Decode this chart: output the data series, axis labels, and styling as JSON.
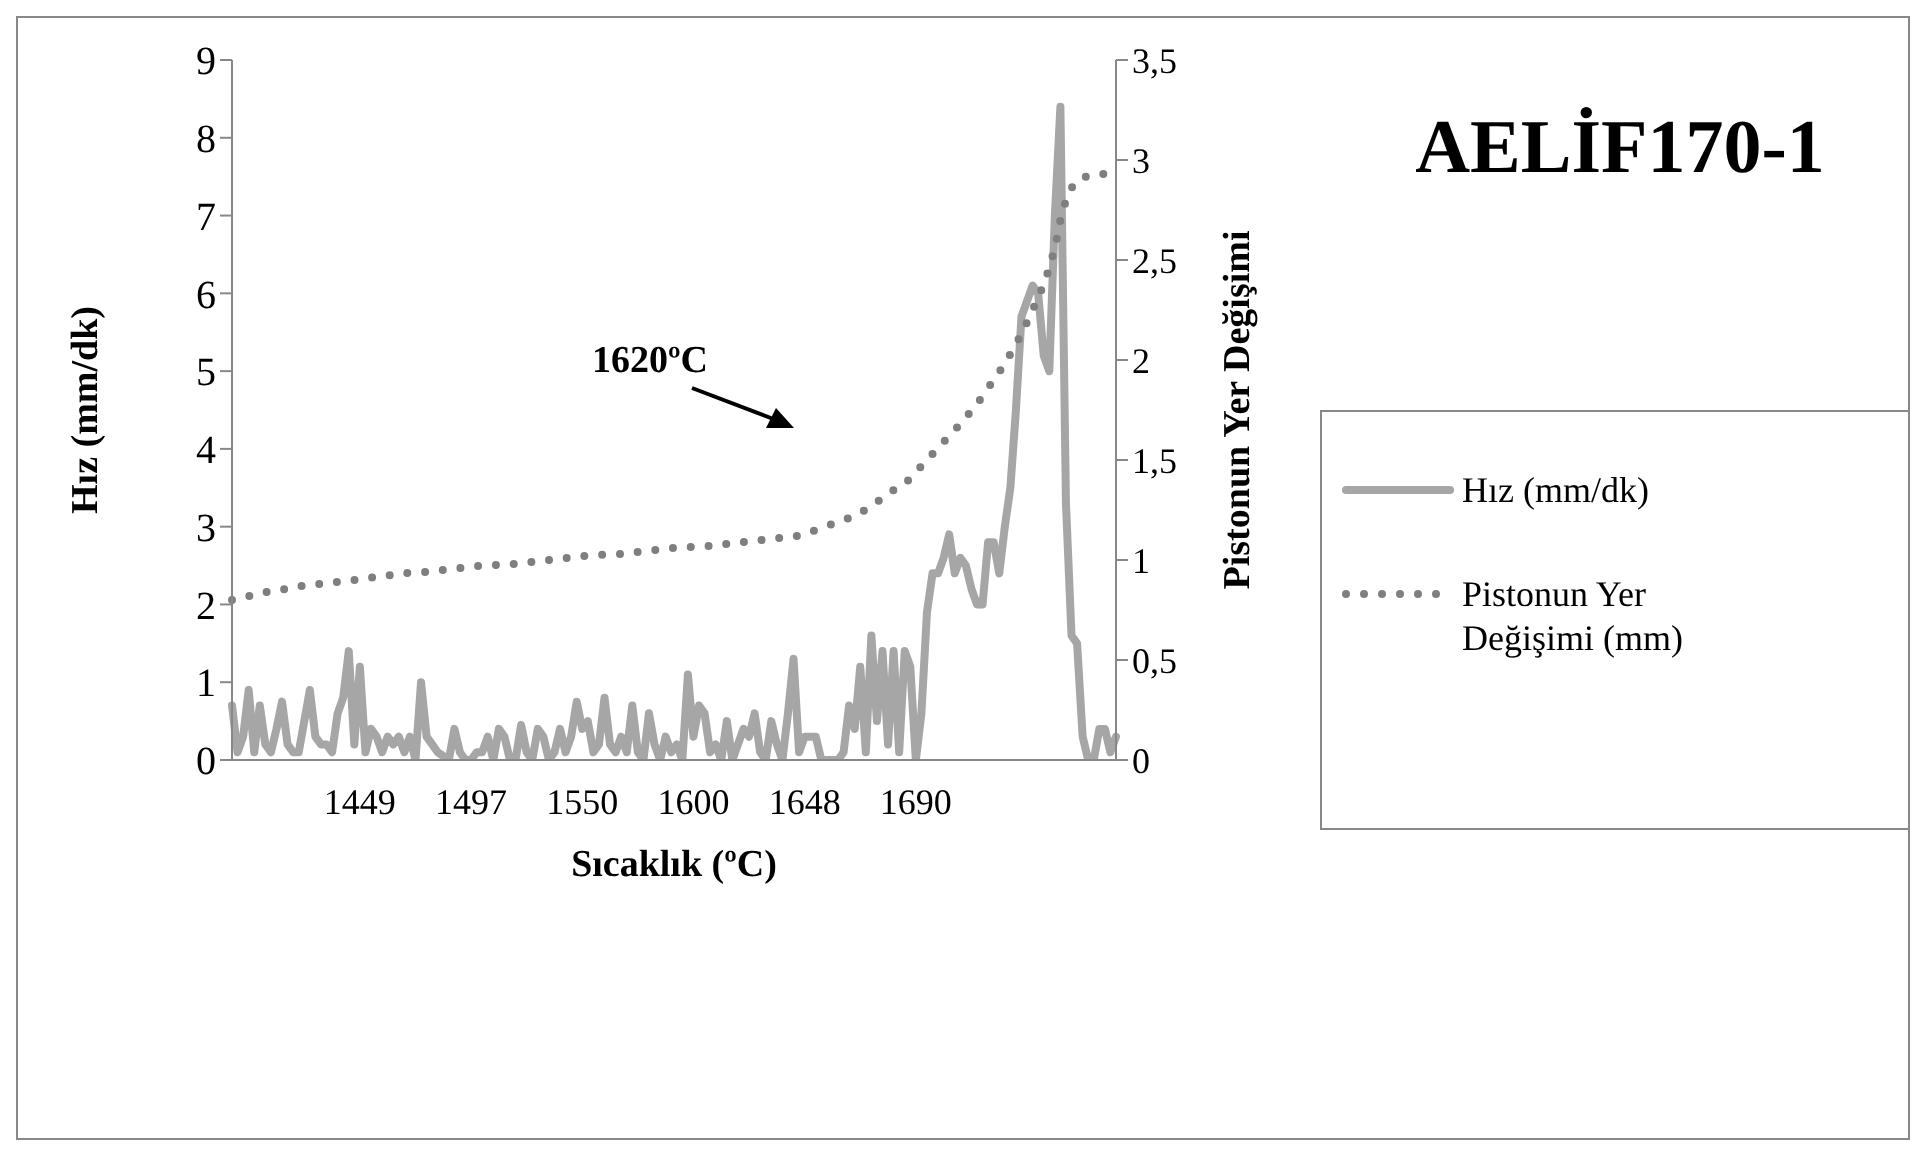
{
  "chart_data": {
    "type": "line",
    "title": "AELİF170-1",
    "xlabel": "Sıcaklık (ºC)",
    "ylabel": "Hız (mm/dk)",
    "y2label": "Pistonun Yer Değişimi",
    "categories": [
      null,
      null,
      null,
      null,
      null,
      null,
      null,
      null,
      null,
      null,
      null,
      null,
      null,
      null,
      null,
      null,
      null,
      null,
      null,
      null,
      null,
      null,
      null,
      "1449",
      null,
      null,
      null,
      null,
      null,
      null,
      null,
      null,
      null,
      null,
      null,
      null,
      null,
      null,
      null,
      null,
      null,
      null,
      null,
      "1497",
      null,
      null,
      null,
      null,
      null,
      null,
      null,
      null,
      null,
      null,
      null,
      null,
      null,
      null,
      null,
      null,
      null,
      null,
      null,
      "1550",
      null,
      null,
      null,
      null,
      null,
      null,
      null,
      null,
      null,
      null,
      null,
      null,
      null,
      null,
      null,
      null,
      null,
      null,
      null,
      "1600",
      null,
      null,
      null,
      null,
      null,
      null,
      null,
      null,
      null,
      null,
      null,
      null,
      null,
      null,
      null,
      null,
      null,
      null,
      null,
      "1648",
      null,
      null,
      null,
      null,
      null,
      null,
      null,
      null,
      null,
      null,
      null,
      null,
      null,
      null,
      null,
      null,
      null,
      null,
      null,
      "1690",
      null,
      null,
      null,
      null,
      null,
      null,
      null,
      null,
      null,
      null,
      null,
      null,
      null,
      null,
      null,
      null,
      null,
      null,
      null,
      null,
      null,
      null,
      null,
      null,
      null,
      null,
      null,
      null,
      null,
      null,
      null,
      null,
      null,
      null,
      null,
      null
    ],
    "series": [
      {
        "name": "Hız (mm/dk)",
        "color": "#a6a6a6",
        "line_style": "solid",
        "values": [
          0.7,
          0.1,
          0.3,
          0.9,
          0.1,
          0.7,
          0.2,
          0.1,
          0.4,
          0.75,
          0.2,
          0.1,
          0.1,
          0.5,
          0.9,
          0.3,
          0.2,
          0.2,
          0.1,
          0.6,
          0.8,
          1.4,
          0.2,
          1.2,
          0.1,
          0.4,
          0.3,
          0.1,
          0.3,
          0.2,
          0.3,
          0.1,
          0.3,
          0,
          1.0,
          0.3,
          0.2,
          0.1,
          0.05,
          0,
          0.4,
          0.1,
          0,
          0,
          0.1,
          0.1,
          0.3,
          0,
          0.4,
          0.3,
          0,
          0,
          0.45,
          0.1,
          0,
          0.4,
          0.3,
          0,
          0.1,
          0.4,
          0.1,
          0.3,
          0.75,
          0.4,
          0.5,
          0.1,
          0.2,
          0.8,
          0.2,
          0.1,
          0.3,
          0.1,
          0.7,
          0.1,
          0,
          0.6,
          0.2,
          0,
          0.3,
          0.1,
          0.2,
          0,
          1.1,
          0.3,
          0.7,
          0.6,
          0.1,
          0.2,
          0,
          0.5,
          0,
          0.2,
          0.4,
          0.3,
          0.6,
          0.1,
          0,
          0.5,
          0.2,
          0,
          0.6,
          1.3,
          0.1,
          0.3,
          0.3,
          0.3,
          0,
          0,
          0,
          0,
          0.1,
          0.7,
          0.4,
          1.2,
          0.1,
          1.6,
          0.5,
          1.4,
          0.2,
          1.4,
          0.1,
          1.4,
          1.2,
          0,
          0.6,
          1.9,
          2.4,
          2.4,
          2.6,
          2.9,
          2.4,
          2.6,
          2.5,
          2.2,
          2.0,
          2.0,
          2.8,
          2.8,
          2.4,
          3.0,
          3.5,
          4.5,
          5.7,
          5.9,
          6.1,
          6.0,
          5.2,
          5.0,
          7.0,
          8.4,
          3.3,
          1.6,
          1.5,
          0.3,
          0,
          0,
          0.4,
          0.4,
          0.1,
          0.3
        ]
      },
      {
        "name": "Pistonun Yer Değişimi (mm)",
        "color": "#7f7f7f",
        "line_style": "dotted",
        "axis": "y2",
        "values": [
          0.8,
          0.81,
          0.81,
          0.82,
          0.82,
          0.83,
          0.84,
          0.84,
          0.85,
          0.85,
          0.86,
          0.86,
          0.87,
          0.87,
          0.88,
          0.88,
          0.88,
          0.89,
          0.89,
          0.89,
          0.9,
          0.9,
          0.9,
          0.91,
          0.91,
          0.91,
          0.92,
          0.92,
          0.92,
          0.93,
          0.93,
          0.93,
          0.94,
          0.94,
          0.94,
          0.94,
          0.95,
          0.95,
          0.95,
          0.95,
          0.96,
          0.96,
          0.96,
          0.96,
          0.97,
          0.97,
          0.97,
          0.97,
          0.98,
          0.98,
          0.98,
          0.98,
          0.99,
          0.99,
          0.99,
          0.99,
          1.0,
          1.0,
          1.0,
          1.0,
          1.01,
          1.01,
          1.01,
          1.02,
          1.02,
          1.02,
          1.02,
          1.03,
          1.03,
          1.03,
          1.03,
          1.04,
          1.04,
          1.04,
          1.04,
          1.05,
          1.05,
          1.05,
          1.05,
          1.06,
          1.06,
          1.06,
          1.06,
          1.07,
          1.07,
          1.07,
          1.07,
          1.08,
          1.08,
          1.08,
          1.08,
          1.09,
          1.09,
          1.09,
          1.1,
          1.1,
          1.1,
          1.1,
          1.11,
          1.11,
          1.11,
          1.12,
          1.12,
          1.13,
          1.14,
          1.15,
          1.16,
          1.17,
          1.18,
          1.19,
          1.2,
          1.21,
          1.22,
          1.24,
          1.25,
          1.27,
          1.29,
          1.31,
          1.33,
          1.35,
          1.36,
          1.38,
          1.41,
          1.44,
          1.47,
          1.5,
          1.53,
          1.56,
          1.59,
          1.62,
          1.65,
          1.68,
          1.71,
          1.75,
          1.78,
          1.82,
          1.86,
          1.9,
          1.94,
          1.98,
          2.03,
          2.08,
          2.13,
          2.19,
          2.25,
          2.31,
          2.38,
          2.46,
          2.56,
          2.7,
          2.8,
          2.86,
          2.9,
          2.91,
          2.92,
          2.92,
          2.93,
          2.93,
          2.93,
          2.93
        ]
      }
    ],
    "ylim": [
      0,
      9
    ],
    "yticks": [
      0,
      1,
      2,
      3,
      4,
      5,
      6,
      7,
      8,
      9
    ],
    "y2lim": [
      0,
      3.5
    ],
    "y2ticks": [
      0,
      {
        "value": 0.5,
        "label": "0,5"
      },
      1,
      {
        "value": 1.5,
        "label": "1,5"
      },
      2,
      {
        "value": 2.5,
        "label": "2,5"
      },
      3,
      {
        "value": 3.5,
        "label": "3,5"
      }
    ],
    "annotations": [
      "1620ºC"
    ],
    "grid": false,
    "legend": "right",
    "marker": "none"
  }
}
